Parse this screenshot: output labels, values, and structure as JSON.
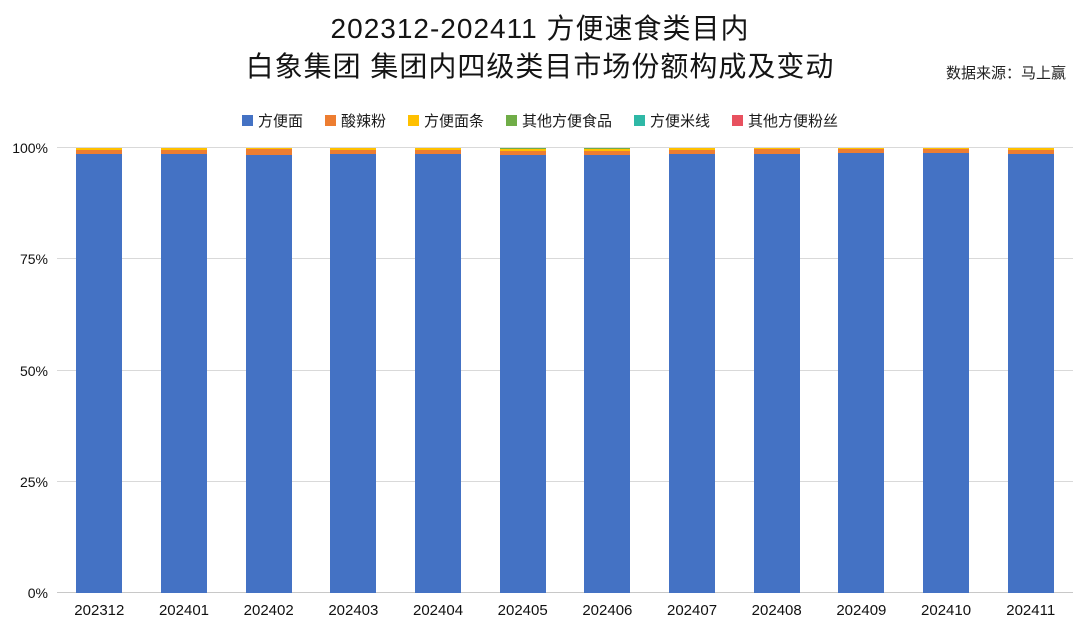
{
  "title": {
    "line1": "202312-202411 方便速食类目内",
    "line2": "白象集团 集团内四级类目市场份额构成及变动"
  },
  "source": "数据来源：马上赢",
  "chart_data": {
    "type": "bar",
    "stacked": true,
    "percent_stacked": true,
    "title": "202312-202411 方便速食类目内 白象集团 集团内四级类目市场份额构成及变动",
    "xlabel": "",
    "ylabel": "",
    "ylim": [
      0,
      100
    ],
    "yticks": [
      "0%",
      "25%",
      "50%",
      "75%",
      "100%"
    ],
    "grid": true,
    "legend_position": "top",
    "categories": [
      "202312",
      "202401",
      "202402",
      "202403",
      "202404",
      "202405",
      "202406",
      "202407",
      "202408",
      "202409",
      "202410",
      "202411"
    ],
    "series": [
      {
        "name": "方便面",
        "color": "#4472C4",
        "values": [
          98.76,
          98.76,
          98.46,
          98.56,
          98.66,
          98.4,
          98.4,
          98.7,
          98.7,
          98.8,
          98.95,
          98.76
        ]
      },
      {
        "name": "酸辣粉",
        "color": "#ED7D31",
        "values": [
          0.9,
          0.9,
          1.25,
          1.1,
          1.0,
          0.95,
          0.9,
          0.9,
          1.0,
          0.9,
          0.8,
          0.9
        ]
      },
      {
        "name": "方便面条",
        "color": "#FFC000",
        "values": [
          0.3,
          0.3,
          0.25,
          0.3,
          0.3,
          0.5,
          0.4,
          0.35,
          0.25,
          0.25,
          0.2,
          0.3
        ]
      },
      {
        "name": "其他方便食品",
        "color": "#70AD47",
        "values": [
          0.02,
          0.02,
          0.02,
          0.02,
          0.02,
          0.12,
          0.25,
          0.03,
          0.03,
          0.03,
          0.03,
          0.02
        ]
      },
      {
        "name": "方便米线",
        "color": "#2FB8A6",
        "values": [
          0.01,
          0.01,
          0.01,
          0.01,
          0.01,
          0.02,
          0.03,
          0.01,
          0.01,
          0.01,
          0.01,
          0.01
        ]
      },
      {
        "name": "其他方便粉丝",
        "color": "#E8515F",
        "values": [
          0.01,
          0.01,
          0.01,
          0.01,
          0.01,
          0.01,
          0.02,
          0.01,
          0.01,
          0.01,
          0.01,
          0.01
        ]
      }
    ]
  }
}
